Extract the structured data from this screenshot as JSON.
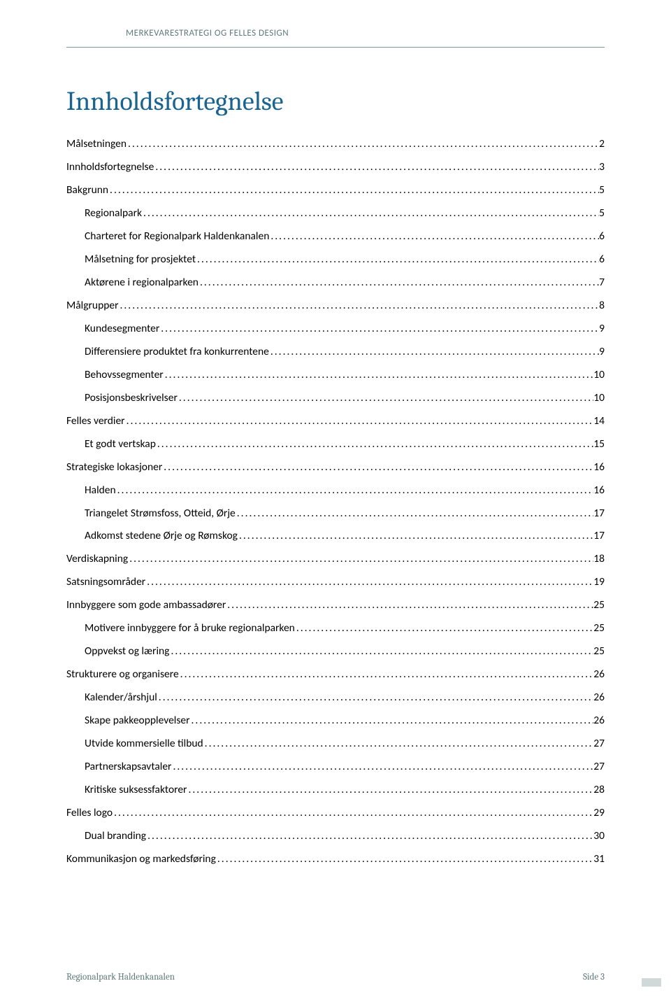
{
  "header": {
    "running_title": "MERKEVARESTRATEGI OG FELLES DESIGN"
  },
  "title": "Innholdsfortegnelse",
  "toc": [
    {
      "label": "Målsetningen",
      "page": "2",
      "indent": 0
    },
    {
      "label": "Innholdsfortegnelse",
      "page": "3",
      "indent": 0
    },
    {
      "label": "Bakgrunn",
      "page": "5",
      "indent": 0
    },
    {
      "label": "Regionalpark",
      "page": "5",
      "indent": 1
    },
    {
      "label": "Charteret for Regionalpark Haldenkanalen",
      "page": "6",
      "indent": 1
    },
    {
      "label": "Målsetning for prosjektet",
      "page": "6",
      "indent": 1
    },
    {
      "label": "Aktørene i regionalparken",
      "page": "7",
      "indent": 1
    },
    {
      "label": "Målgrupper",
      "page": "8",
      "indent": 0
    },
    {
      "label": "Kundesegmenter",
      "page": "9",
      "indent": 1
    },
    {
      "label": "Differensiere produktet fra konkurrentene",
      "page": "9",
      "indent": 1
    },
    {
      "label": "Behovssegmenter",
      "page": "10",
      "indent": 1
    },
    {
      "label": "Posisjonsbeskrivelser",
      "page": "10",
      "indent": 1
    },
    {
      "label": "Felles verdier",
      "page": "14",
      "indent": 0
    },
    {
      "label": "Et godt vertskap",
      "page": "15",
      "indent": 1
    },
    {
      "label": "Strategiske lokasjoner",
      "page": "16",
      "indent": 0
    },
    {
      "label": "Halden",
      "page": "16",
      "indent": 1
    },
    {
      "label": "Triangelet Strømsfoss, Otteid, Ørje",
      "page": "17",
      "indent": 1
    },
    {
      "label": "Adkomst stedene Ørje og Rømskog",
      "page": "17",
      "indent": 1
    },
    {
      "label": "Verdiskapning",
      "page": "18",
      "indent": 0
    },
    {
      "label": "Satsningsområder",
      "page": "19",
      "indent": 0
    },
    {
      "label": "Innbyggere som gode ambassadører",
      "page": "25",
      "indent": 0
    },
    {
      "label": "Motivere innbyggere for å bruke regionalparken",
      "page": "25",
      "indent": 1
    },
    {
      "label": "Oppvekst og læring",
      "page": "25",
      "indent": 1
    },
    {
      "label": "Strukturere og organisere",
      "page": "26",
      "indent": 0
    },
    {
      "label": "Kalender/årshjul",
      "page": "26",
      "indent": 1
    },
    {
      "label": "Skape pakkeopplevelser",
      "page": "26",
      "indent": 1
    },
    {
      "label": "Utvide kommersielle tilbud",
      "page": "27",
      "indent": 1
    },
    {
      "label": "Partnerskapsavtaler",
      "page": "27",
      "indent": 1
    },
    {
      "label": "Kritiske suksessfaktorer",
      "page": "28",
      "indent": 1
    },
    {
      "label": "Felles logo",
      "page": "29",
      "indent": 0
    },
    {
      "label": "Dual branding",
      "page": "30",
      "indent": 1
    },
    {
      "label": "Kommunikasjon og markedsføring",
      "page": "31",
      "indent": 0
    }
  ],
  "footer": {
    "left": "Regionalpark Haldenkanalen",
    "right": "Side 3"
  },
  "colors": {
    "title_color": "#1a648f",
    "header_text": "#5f7a7a",
    "header_rule": "#7d9999",
    "body_text": "#000000",
    "background": "#ffffff"
  },
  "typography": {
    "title_font": "Cambria",
    "title_size_pt": 28,
    "body_font": "Calibri",
    "body_size_pt": 11,
    "header_size_pt": 10
  }
}
